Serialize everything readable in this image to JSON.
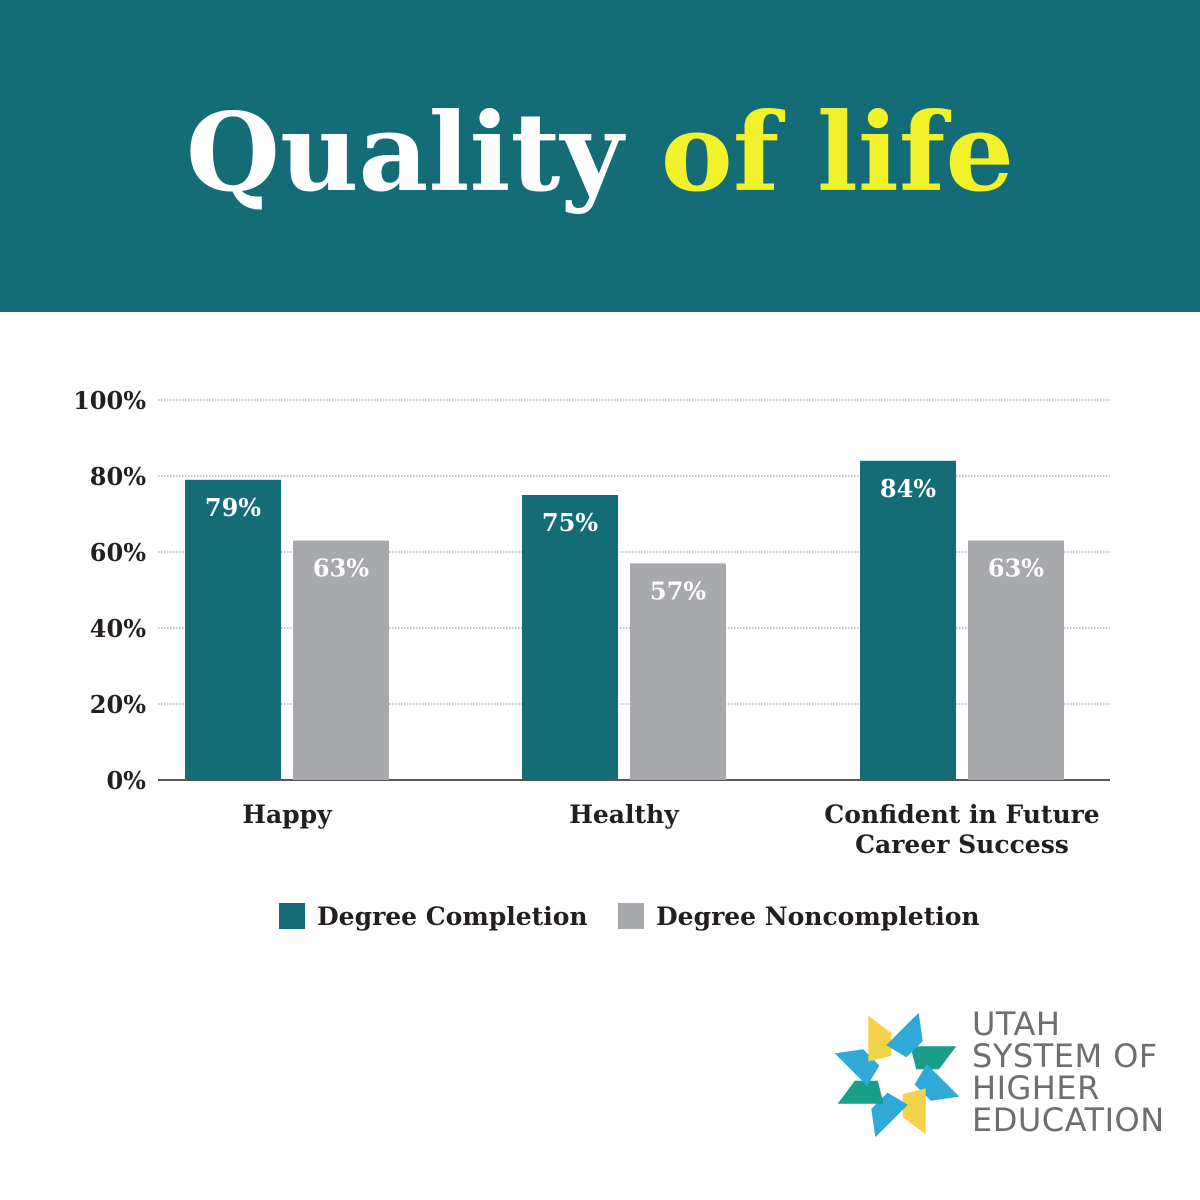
{
  "header": {
    "title_part1": "Quality",
    "title_part2": "of life",
    "background": "#136c76",
    "title_color": "#ffffff",
    "highlight_color": "#f1f22a"
  },
  "chart_data": {
    "type": "bar",
    "categories": [
      [
        "Happy"
      ],
      [
        "Healthy"
      ],
      [
        "Confident in Future",
        "Career Success"
      ]
    ],
    "series": [
      {
        "name": "Degree Completion",
        "values": [
          79,
          75,
          84
        ],
        "labels": [
          "79%",
          "75%",
          "84%"
        ],
        "color": "#136c76"
      },
      {
        "name": "Degree Noncompletion",
        "values": [
          63,
          57,
          63
        ],
        "labels": [
          "63%",
          "57%",
          "63%"
        ],
        "color": "#a7a9ac"
      }
    ],
    "ylim": [
      0,
      100
    ],
    "yticks": [
      0,
      20,
      40,
      60,
      80,
      100
    ],
    "ytick_labels": [
      "0%",
      "20%",
      "40%",
      "60%",
      "80%",
      "100%"
    ],
    "grid": true,
    "legend": "bottom"
  },
  "legend": {
    "items": [
      {
        "label": "Degree Completion",
        "color": "#136c76"
      },
      {
        "label": "Degree Noncompletion",
        "color": "#a7a9ac"
      }
    ]
  },
  "logo": {
    "lines": [
      "UTAH",
      "SYSTEM OF",
      "HIGHER",
      "EDUCATION"
    ],
    "colors": [
      "#1a9e8a",
      "#2fa9d8",
      "#f4d24a"
    ]
  }
}
